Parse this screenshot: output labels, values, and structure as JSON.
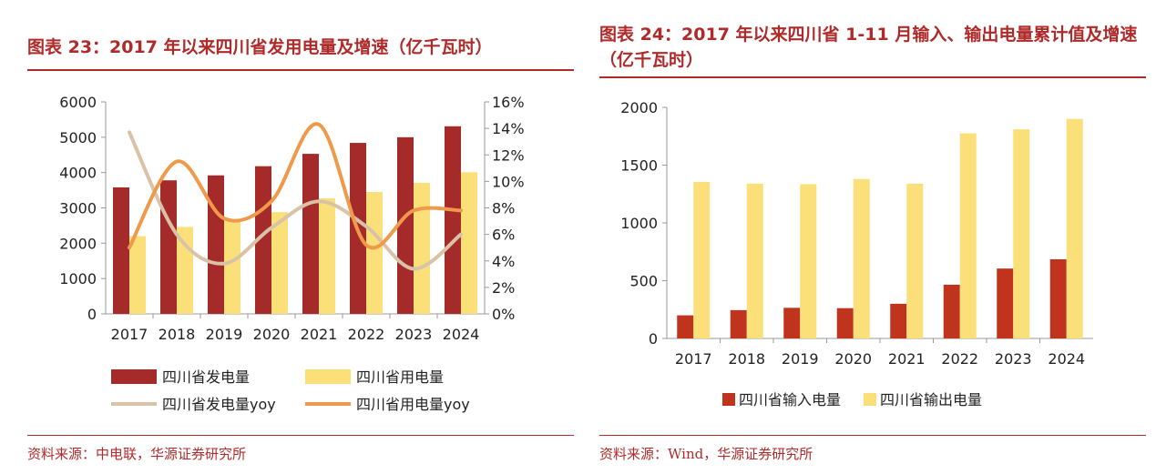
{
  "left": {
    "title": "图表 23：2017 年以来四川省发用电量及增速（亿千瓦时）",
    "source": "资料来源：中电联，华源证券研究所",
    "legend": [
      "四川省发电量",
      "四川省用电量",
      "四川省发电量yoy",
      "四川省用电量yoy"
    ]
  },
  "right": {
    "title": "图表 24：2017 年以来四川省 1-11 月输入、输出电量累计值及增速（亿千瓦时）",
    "source": "资料来源：Wind，华源证券研究所",
    "legend": [
      "四川省输入电量",
      "四川省输出电量"
    ]
  },
  "colors": {
    "accent": "#b02a2a",
    "bar_dark": "#a52a2a",
    "bar_yellow": "#fbe07a",
    "line_gen": "#d9c3a8",
    "line_use": "#ef9a4a",
    "bar_input": "#c0341d",
    "bar_output": "#fbe07a"
  },
  "chart_data": [
    {
      "type": "bar",
      "categories": [
        "2017",
        "2018",
        "2019",
        "2020",
        "2021",
        "2022",
        "2023",
        "2024"
      ],
      "series": [
        {
          "name": "四川省发电量",
          "kind": "bar",
          "axis": "left",
          "values": [
            3580,
            3780,
            3920,
            4180,
            4530,
            4840,
            5000,
            5310
          ]
        },
        {
          "name": "四川省用电量",
          "kind": "bar",
          "axis": "left",
          "values": [
            2200,
            2460,
            2630,
            2880,
            3270,
            3450,
            3710,
            4010
          ]
        },
        {
          "name": "四川省发电量yoy",
          "kind": "line",
          "axis": "right",
          "values": [
            13.7,
            6.0,
            3.8,
            6.5,
            8.5,
            6.6,
            3.4,
            6.0
          ]
        },
        {
          "name": "四川省用电量yoy",
          "kind": "line",
          "axis": "right",
          "values": [
            5.0,
            11.5,
            7.2,
            8.5,
            14.3,
            5.2,
            7.8,
            7.8
          ]
        }
      ],
      "ylim": [
        0,
        6000
      ],
      "yticks": [
        0,
        1000,
        2000,
        3000,
        4000,
        5000,
        6000
      ],
      "y2lim": [
        0,
        16
      ],
      "y2ticks": [
        "0%",
        "2%",
        "4%",
        "6%",
        "8%",
        "10%",
        "12%",
        "14%",
        "16%"
      ],
      "grid": false,
      "legend_position": "bottom"
    },
    {
      "type": "bar",
      "categories": [
        "2017",
        "2018",
        "2019",
        "2020",
        "2021",
        "2022",
        "2023",
        "2024"
      ],
      "series": [
        {
          "name": "四川省输入电量",
          "values": [
            200,
            245,
            265,
            262,
            300,
            465,
            605,
            685
          ]
        },
        {
          "name": "四川省输出电量",
          "values": [
            1355,
            1340,
            1335,
            1380,
            1340,
            1775,
            1810,
            1900
          ]
        }
      ],
      "ylim": [
        0,
        2000
      ],
      "yticks": [
        0,
        500,
        1000,
        1500,
        2000
      ],
      "grid": false,
      "legend_position": "bottom"
    }
  ]
}
